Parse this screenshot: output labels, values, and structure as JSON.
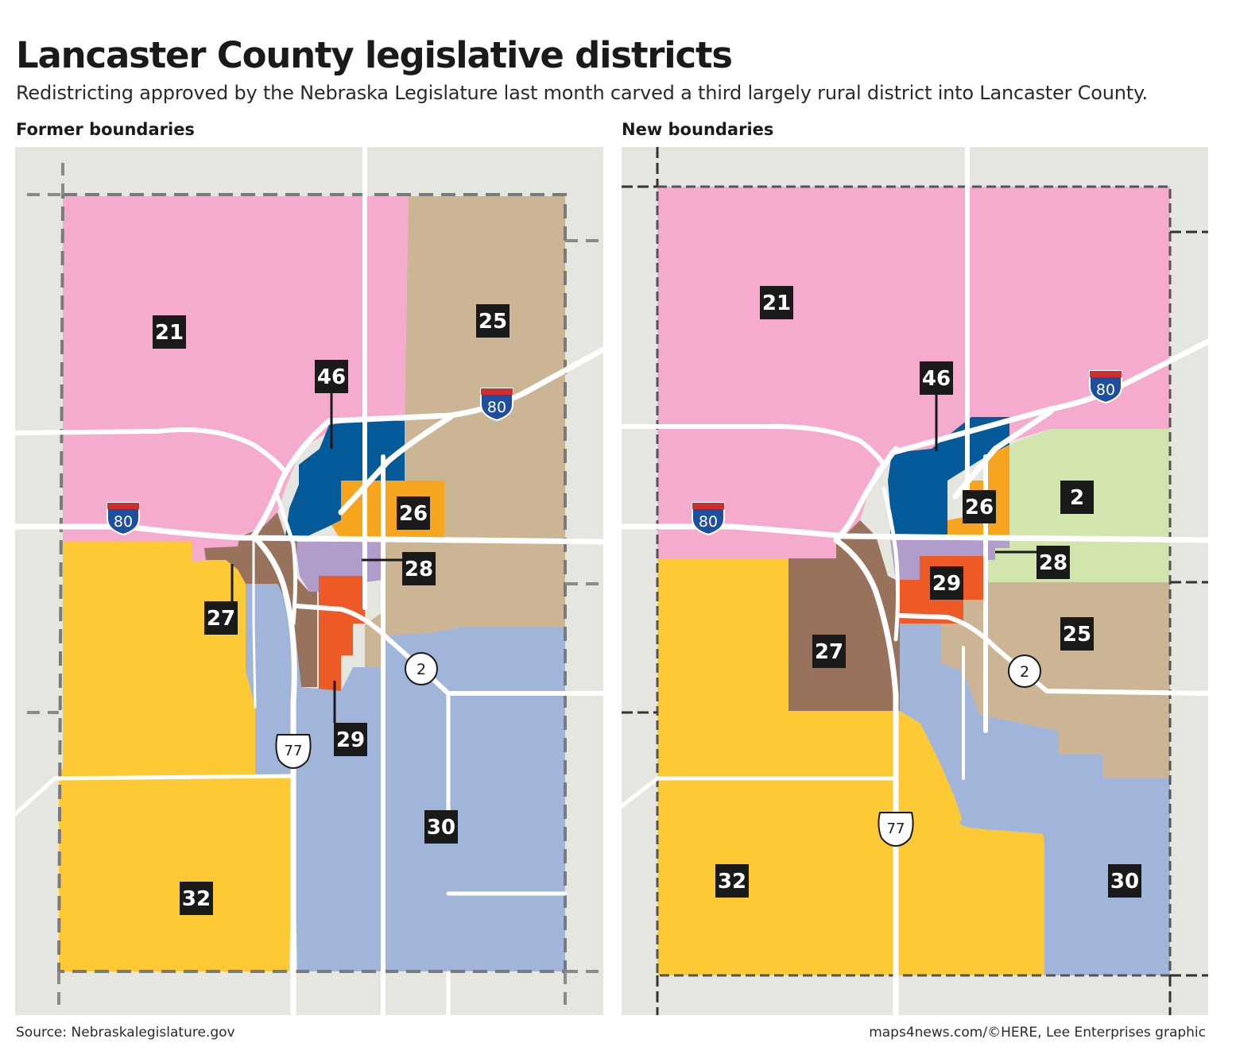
{
  "title": "Lancaster County legislative districts",
  "subtitle": "Redistricting approved by the Nebraska Legislature last month carved a third largely rural district into Lancaster County.",
  "colors": {
    "d21": "#f4abcd",
    "d25": "#cbb594",
    "d46": "#055b99",
    "d26": "#f7a51e",
    "d28": "#b19dcb",
    "d27": "#98725a",
    "d29": "#ee5a26",
    "d30": "#a0b5d9",
    "d32": "#fdc934",
    "d2": "#d1e5ad",
    "base": "#e6e6e1",
    "road": "#ffffff"
  },
  "maps": [
    {
      "label": "Former boundaries",
      "districts": [
        "21",
        "46",
        "25",
        "26",
        "28",
        "27",
        "29",
        "30",
        "32"
      ],
      "shields": {
        "interstate": [
          "80",
          "80"
        ],
        "us_route": "77",
        "state_route": "2"
      }
    },
    {
      "label": "New boundaries",
      "districts": [
        "21",
        "46",
        "2",
        "26",
        "28",
        "29",
        "25",
        "27",
        "32",
        "30"
      ],
      "shields": {
        "interstate": [
          "80",
          "80"
        ],
        "us_route": "77",
        "state_route": "2"
      }
    }
  ],
  "source": "Source: Nebraskalegislature.gov",
  "credit": "maps4news.com/©HERE, Lee Enterprises graphic"
}
